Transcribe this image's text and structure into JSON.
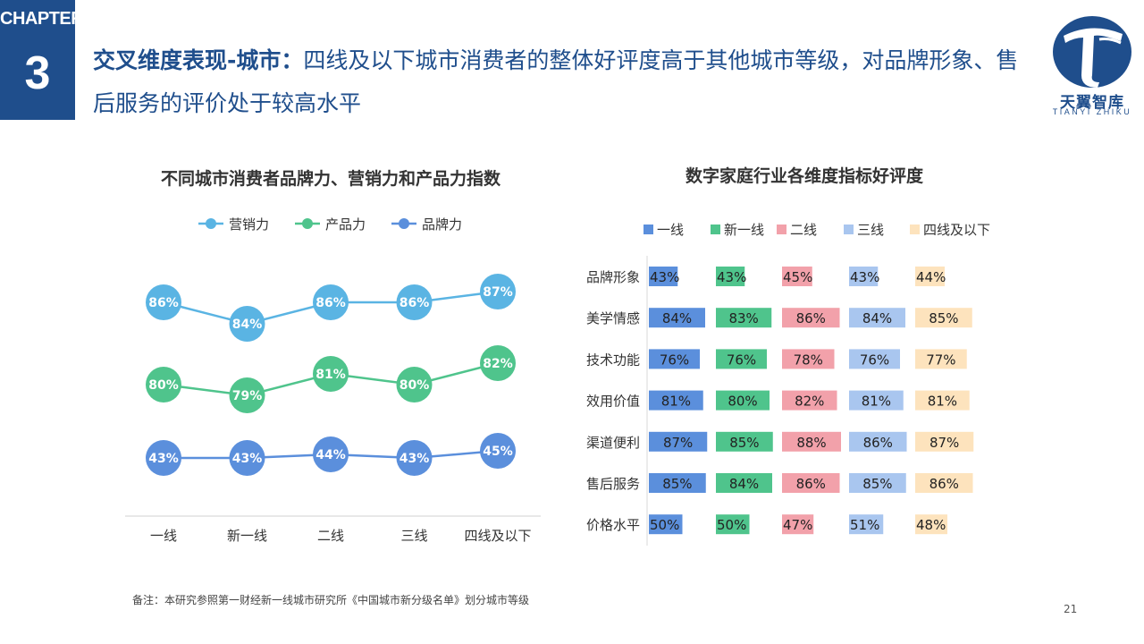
{
  "chapter": {
    "label": "CHAPTER",
    "number": "3"
  },
  "headline": {
    "strong": "交叉维度表现-城市：",
    "rest": "四线及以下城市消费者的整体好评度高于其他城市等级，对品牌形象、售后服务的评价处于较高水平"
  },
  "logo": {
    "name": "天翼智库",
    "sub": "TIANYI ZHIKU"
  },
  "footnote": "备注：本研究参照第一财经新一线城市研究所《中国城市新分级名单》划分城市等级",
  "page_number": "21",
  "chart_data": [
    {
      "type": "line",
      "title": "不同城市消费者品牌力、营销力和产品力指数",
      "categories": [
        "一线",
        "新一线",
        "二线",
        "三线",
        "四线及以下"
      ],
      "series": [
        {
          "name": "营销力",
          "color": "#5ab4e3",
          "values": [
            86,
            84,
            86,
            86,
            87
          ],
          "labels": [
            "86%",
            "84%",
            "86%",
            "86%",
            "87%"
          ]
        },
        {
          "name": "产品力",
          "color": "#4fc48c",
          "values": [
            80,
            79,
            81,
            80,
            82
          ],
          "labels": [
            "80%",
            "79%",
            "81%",
            "80%",
            "82%"
          ]
        },
        {
          "name": "品牌力",
          "color": "#5b8fdc",
          "values": [
            43,
            43,
            44,
            43,
            45
          ],
          "labels": [
            "43%",
            "43%",
            "44%",
            "43%",
            "45%"
          ]
        }
      ],
      "xlabel": "",
      "ylabel": "",
      "legend": "top"
    },
    {
      "type": "bar",
      "title": "数字家庭行业各维度指标好评度",
      "categories": [
        "品牌形象",
        "美学情感",
        "技术功能",
        "效用价值",
        "渠道便利",
        "售后服务",
        "价格水平"
      ],
      "series": [
        {
          "name": "一线",
          "color": "#5b8fdc",
          "values": [
            43,
            84,
            76,
            81,
            87,
            85,
            50
          ],
          "labels": [
            "43%",
            "84%",
            "76%",
            "81%",
            "87%",
            "85%",
            "50%"
          ]
        },
        {
          "name": "新一线",
          "color": "#4fc48c",
          "values": [
            43,
            83,
            76,
            80,
            85,
            84,
            50
          ],
          "labels": [
            "43%",
            "83%",
            "76%",
            "80%",
            "85%",
            "84%",
            "50%"
          ]
        },
        {
          "name": "二线",
          "color": "#f2a1aa",
          "values": [
            45,
            86,
            78,
            82,
            88,
            86,
            47
          ],
          "labels": [
            "45%",
            "86%",
            "78%",
            "82%",
            "88%",
            "86%",
            "47%"
          ]
        },
        {
          "name": "三线",
          "color": "#a9c6ef",
          "values": [
            43,
            84,
            76,
            81,
            86,
            85,
            51
          ],
          "labels": [
            "43%",
            "84%",
            "76%",
            "81%",
            "86%",
            "85%",
            "51%"
          ]
        },
        {
          "name": "四线及以下",
          "color": "#fde3bd",
          "values": [
            44,
            85,
            77,
            81,
            87,
            86,
            48
          ],
          "labels": [
            "44%",
            "85%",
            "77%",
            "81%",
            "87%",
            "86%",
            "48%"
          ]
        }
      ],
      "legend": "top"
    }
  ]
}
